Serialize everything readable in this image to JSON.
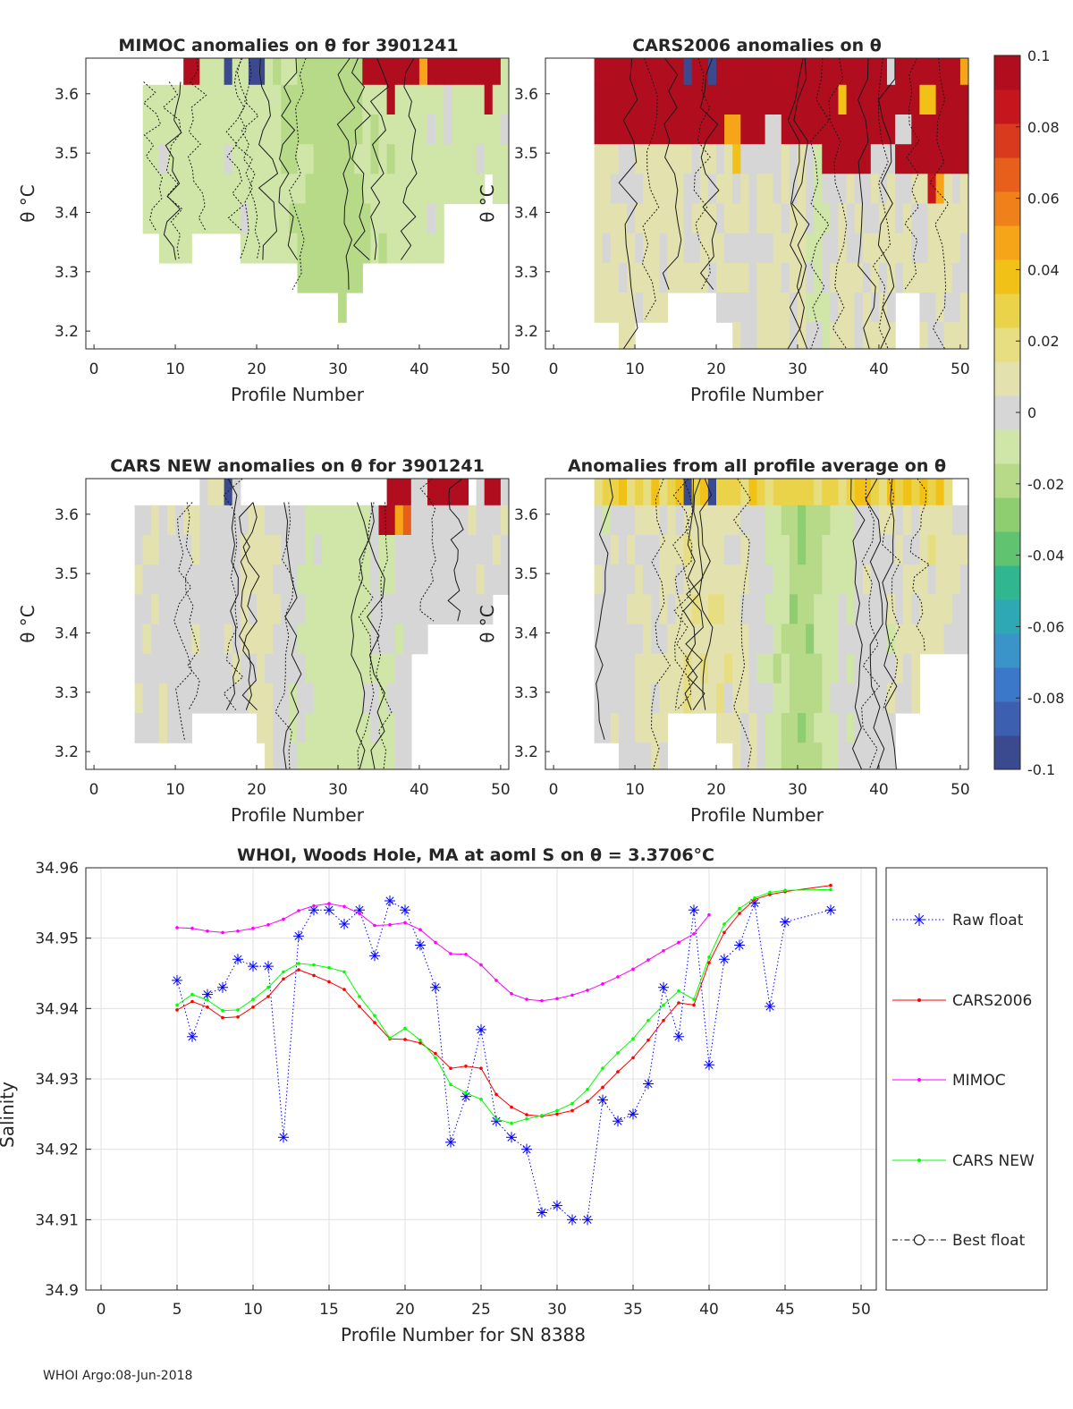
{
  "footer": "WHOI Argo:08-Jun-2018",
  "colorbar": {
    "ticks": [
      "0.1",
      "0.08",
      "0.06",
      "0.04",
      "0.02",
      "0",
      "-0.02",
      "-0.04",
      "-0.06",
      "-0.08",
      "-0.1"
    ],
    "range": [
      -0.1,
      0.1
    ]
  },
  "chart_data": [
    {
      "id": "mimoc",
      "type": "heatmap",
      "title": "MIMOC anomalies on θ  for 3901241",
      "xlabel": "Profile Number",
      "ylabel": "θ °C",
      "xlim": [
        -1,
        51
      ],
      "ylim": [
        3.17,
        3.66
      ],
      "xticks": [
        "0",
        "10",
        "20",
        "30",
        "40",
        "50"
      ],
      "yticks": [
        "3.2",
        "3.3",
        "3.4",
        "3.5",
        "3.6"
      ]
    },
    {
      "id": "cars2006",
      "type": "heatmap",
      "title": "CARS2006 anomalies on θ",
      "xlabel": "Profile Number",
      "ylabel": "θ °C",
      "xlim": [
        -1,
        51
      ],
      "ylim": [
        3.17,
        3.66
      ],
      "xticks": [
        "0",
        "10",
        "20",
        "30",
        "40",
        "50"
      ],
      "yticks": [
        "3.2",
        "3.3",
        "3.4",
        "3.5",
        "3.6"
      ]
    },
    {
      "id": "carsnew",
      "type": "heatmap",
      "title": "CARS NEW anomalies on θ for 3901241",
      "xlabel": "Profile Number",
      "ylabel": "θ °C",
      "xlim": [
        -1,
        51
      ],
      "ylim": [
        3.17,
        3.66
      ],
      "xticks": [
        "0",
        "10",
        "20",
        "30",
        "40",
        "50"
      ],
      "yticks": [
        "3.2",
        "3.3",
        "3.4",
        "3.5",
        "3.6"
      ]
    },
    {
      "id": "allavg",
      "type": "heatmap",
      "title": "Anomalies from all profile average on θ",
      "xlabel": "Profile Number",
      "ylabel": "θ °C",
      "xlim": [
        -1,
        51
      ],
      "ylim": [
        3.17,
        3.66
      ],
      "xticks": [
        "0",
        "10",
        "20",
        "30",
        "40",
        "50"
      ],
      "yticks": [
        "3.2",
        "3.3",
        "3.4",
        "3.5",
        "3.6"
      ]
    },
    {
      "id": "salinity",
      "type": "line",
      "title": "WHOI, Woods Hole, MA at aoml S on θ = 3.3706°C",
      "xlabel": "Profile Number for SN 8388",
      "ylabel": "Salinity",
      "xlim": [
        -1,
        51
      ],
      "ylim": [
        34.9,
        34.96
      ],
      "xticks": [
        "0",
        "5",
        "10",
        "15",
        "20",
        "25",
        "30",
        "35",
        "40",
        "45",
        "50"
      ],
      "yticks": [
        "34.96",
        "34.95",
        "34.94",
        "34.93",
        "34.92",
        "34.91",
        "34.9"
      ],
      "grid": true,
      "legend_position": "outside-right",
      "series": [
        {
          "name": "Raw float",
          "color": "#0000ff",
          "style": "dotted-asterisk",
          "x": [
            5,
            6,
            7,
            8,
            9,
            10,
            11,
            12,
            13,
            14,
            15,
            16,
            17,
            18,
            19,
            20,
            21,
            22,
            23,
            24,
            25,
            26,
            27,
            28,
            29,
            30,
            31,
            32,
            33,
            34,
            35,
            36,
            37,
            38,
            39,
            40,
            41,
            42,
            43,
            44,
            45,
            48
          ],
          "y": [
            34.944,
            34.936,
            34.942,
            34.943,
            34.947,
            34.946,
            34.946,
            34.9217,
            34.9503,
            34.954,
            34.954,
            34.952,
            34.954,
            34.9475,
            34.9553,
            34.954,
            34.949,
            34.943,
            34.921,
            34.9275,
            34.937,
            34.924,
            34.9217,
            34.92,
            34.911,
            34.912,
            34.91,
            34.91,
            34.927,
            34.924,
            34.925,
            34.9293,
            34.943,
            34.936,
            34.954,
            34.932,
            34.947,
            34.949,
            34.955,
            34.9403,
            34.9523,
            34.954
          ]
        },
        {
          "name": "CARS2006",
          "color": "#ff0000",
          "style": "solid-dot",
          "x": [
            5,
            6,
            7,
            8,
            9,
            10,
            11,
            12,
            13,
            14,
            15,
            16,
            17,
            18,
            19,
            20,
            21,
            22,
            23,
            24,
            25,
            26,
            27,
            28,
            29,
            30,
            31,
            32,
            33,
            34,
            35,
            36,
            37,
            38,
            39,
            40,
            41,
            42,
            43,
            44,
            45,
            48
          ],
          "y": [
            34.9398,
            34.941,
            34.9402,
            34.9387,
            34.9388,
            34.9402,
            34.9417,
            34.9442,
            34.9455,
            34.9447,
            34.9438,
            34.9427,
            34.9403,
            34.938,
            34.9357,
            34.9356,
            34.9351,
            34.9336,
            34.9315,
            34.9318,
            34.9315,
            34.9278,
            34.926,
            34.9249,
            34.9247,
            34.925,
            34.9255,
            34.9268,
            34.9288,
            34.931,
            34.933,
            34.9355,
            34.9383,
            34.9408,
            34.9405,
            34.9465,
            34.9508,
            34.9535,
            34.9555,
            34.9562,
            34.9566,
            34.9575
          ]
        },
        {
          "name": "MIMOC",
          "color": "#ff00ff",
          "style": "solid-dot",
          "x": [
            5,
            6,
            7,
            8,
            9,
            10,
            11,
            12,
            13,
            14,
            15,
            16,
            17,
            18,
            19,
            20,
            21,
            22,
            23,
            24,
            25,
            26,
            27,
            28,
            29,
            30,
            31,
            32,
            33,
            34,
            35,
            36,
            37,
            38,
            39,
            40
          ],
          "y": [
            34.9515,
            34.9514,
            34.951,
            34.9508,
            34.951,
            34.9514,
            34.9519,
            34.9527,
            34.9539,
            34.9546,
            34.9549,
            34.9545,
            34.9535,
            34.9518,
            34.9519,
            34.9522,
            34.9512,
            34.9494,
            34.9478,
            34.9477,
            34.9462,
            34.944,
            34.9421,
            34.9413,
            34.9411,
            34.9414,
            34.9419,
            34.9426,
            34.9435,
            34.9445,
            34.9456,
            34.9469,
            34.9482,
            34.9494,
            34.9506,
            34.9533
          ]
        },
        {
          "name": "CARS NEW",
          "color": "#00ff00",
          "style": "solid-dot",
          "x": [
            5,
            6,
            7,
            8,
            9,
            10,
            11,
            12,
            13,
            14,
            15,
            16,
            17,
            18,
            19,
            20,
            21,
            22,
            23,
            24,
            25,
            26,
            27,
            28,
            29,
            30,
            31,
            32,
            33,
            34,
            35,
            36,
            37,
            38,
            39,
            40,
            41,
            42,
            43,
            44,
            45,
            48
          ],
          "y": [
            34.9405,
            34.942,
            34.9412,
            34.9397,
            34.9398,
            34.9413,
            34.943,
            34.9452,
            34.9464,
            34.9462,
            34.9458,
            34.9452,
            34.9417,
            34.939,
            34.9358,
            34.9372,
            34.9355,
            34.933,
            34.9292,
            34.928,
            34.9271,
            34.9243,
            34.9237,
            34.9243,
            34.9248,
            34.9255,
            34.9265,
            34.9285,
            34.9315,
            34.9337,
            34.9357,
            34.9383,
            34.9405,
            34.9425,
            34.9413,
            34.9473,
            34.952,
            34.9542,
            34.9557,
            34.9565,
            34.9568,
            34.9569
          ]
        },
        {
          "name": "Best float",
          "color": "#000000",
          "style": "dashdot-circle",
          "x": [],
          "y": []
        }
      ]
    }
  ]
}
